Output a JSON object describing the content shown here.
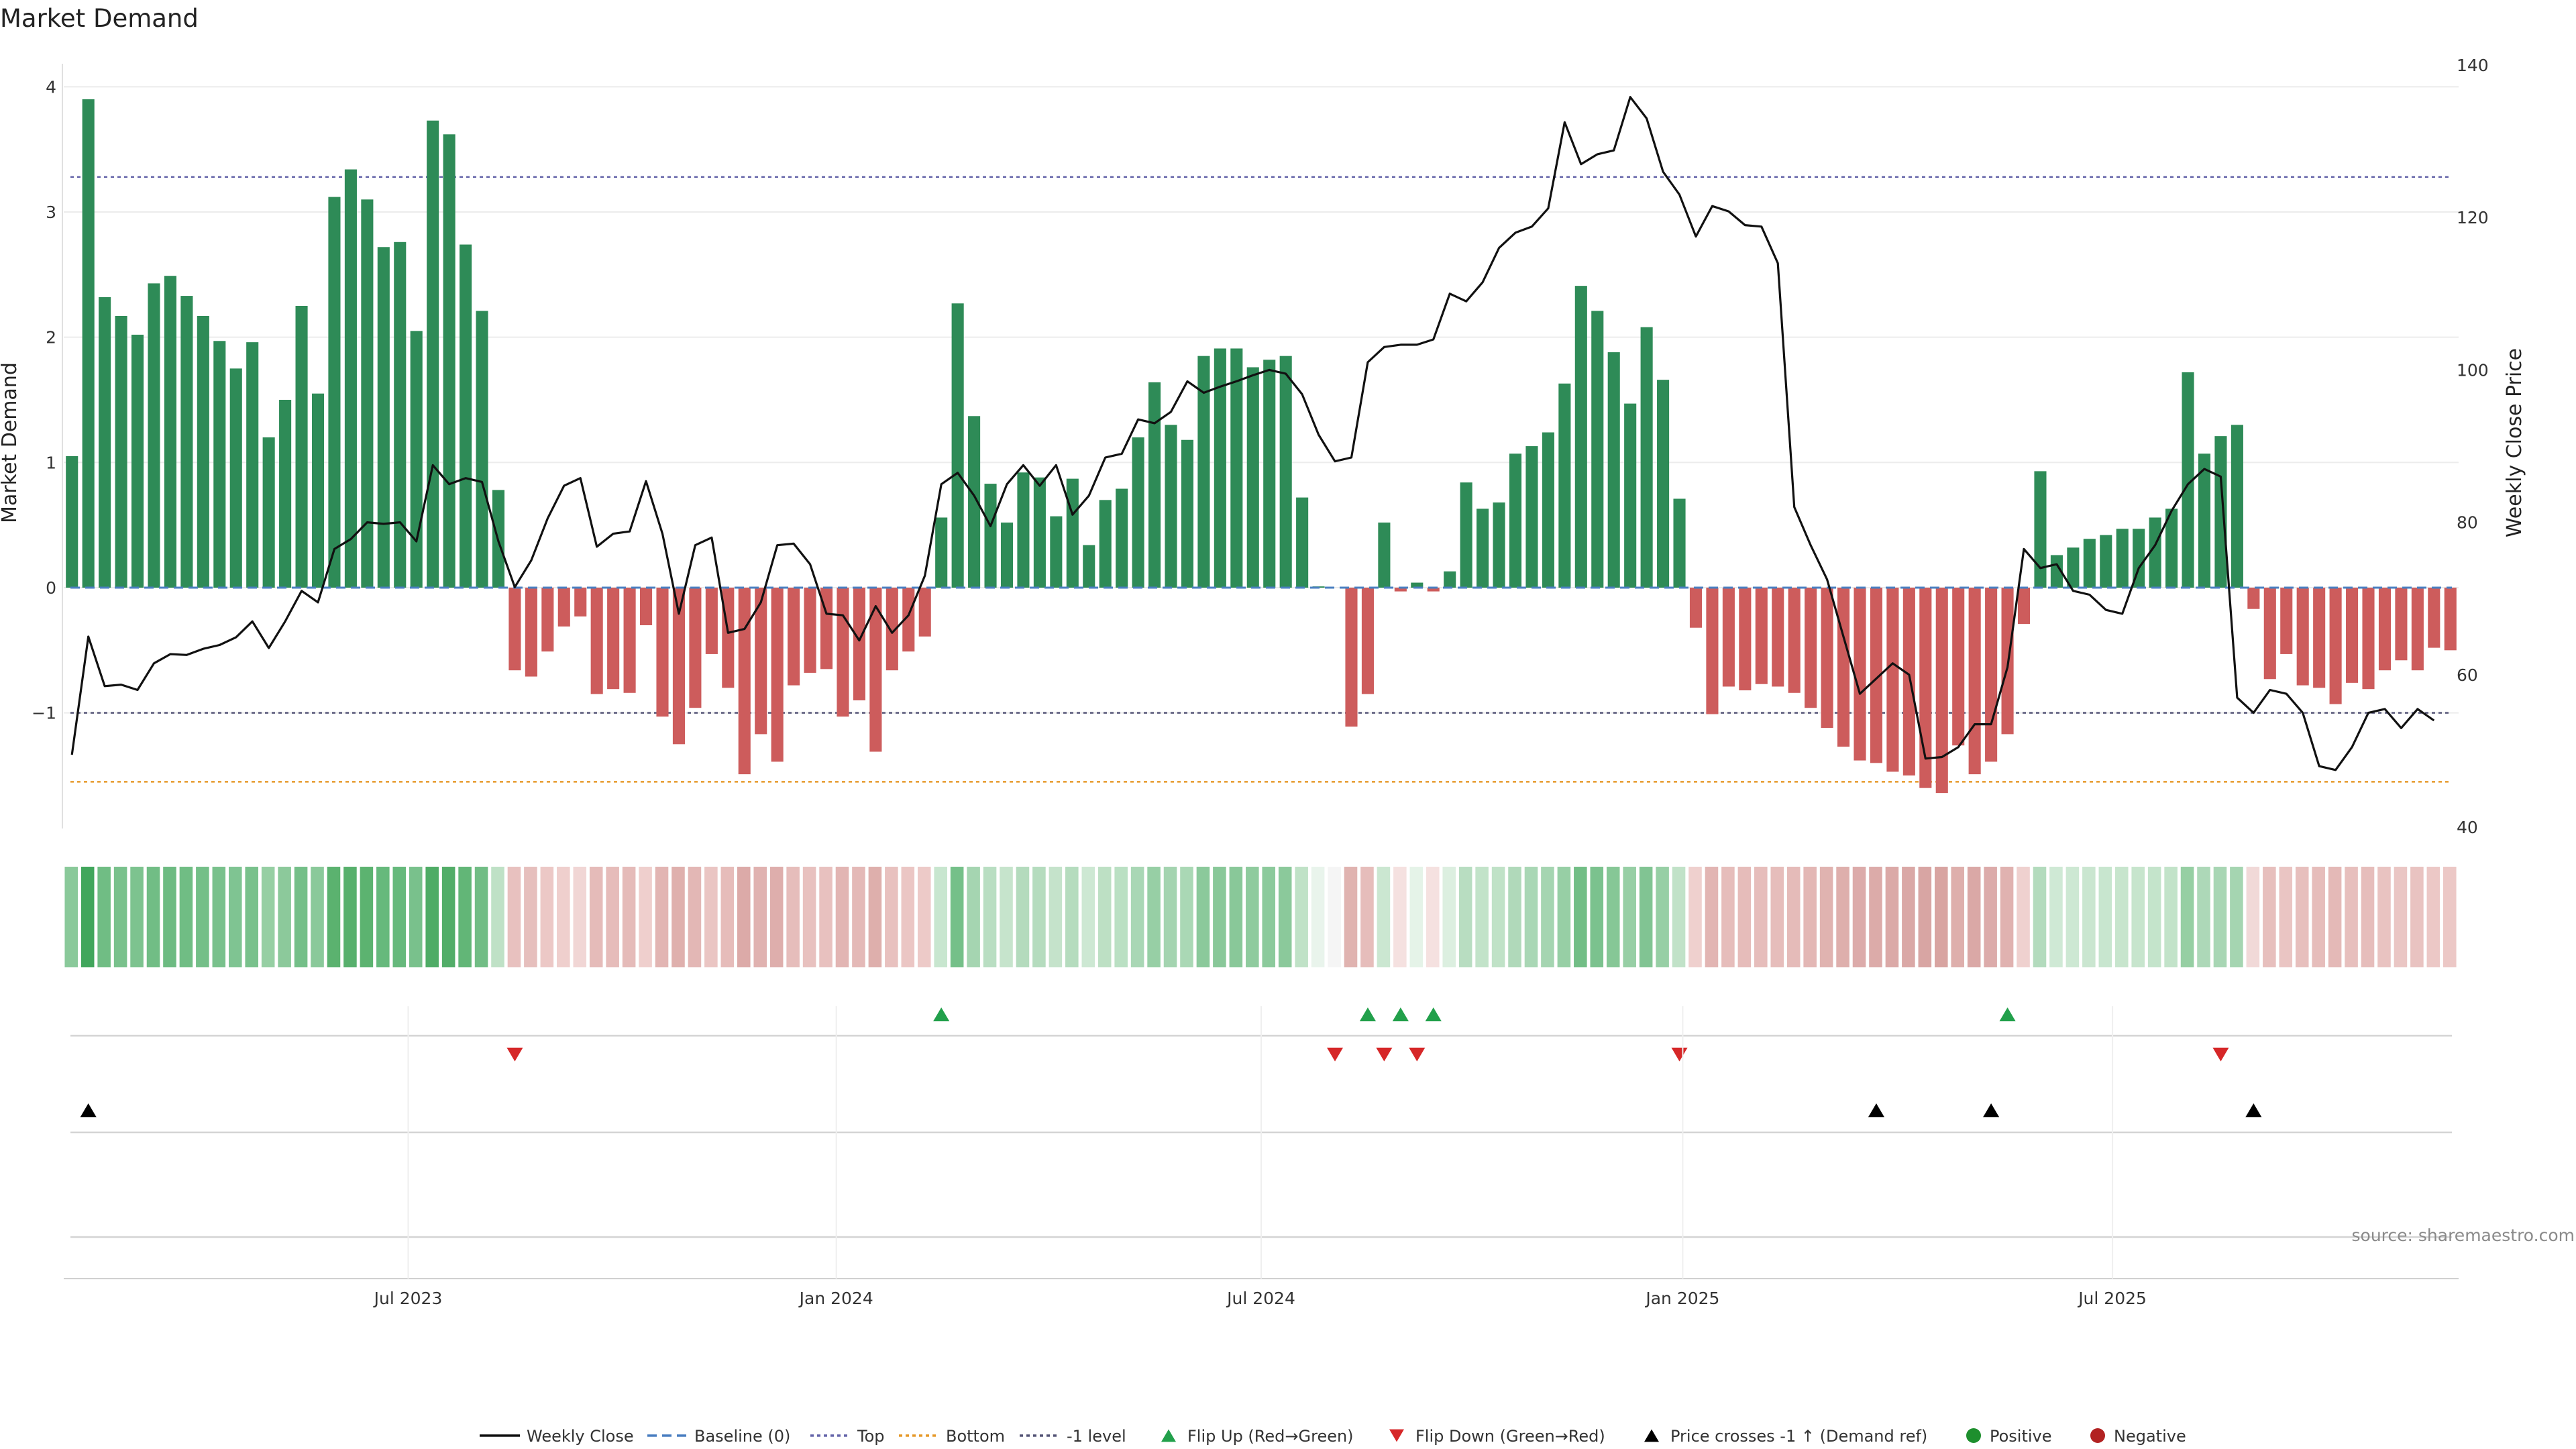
{
  "chart_data": {
    "type": "bar",
    "title": "Market Demand",
    "ylabel": "Market Demand",
    "y2label": "Weekly Close Price",
    "ylim": [
      -1.95,
      4.05
    ],
    "y2lim": [
      40,
      140
    ],
    "yticks": [
      4,
      3,
      2,
      1,
      0,
      -1
    ],
    "ytick_labels": [
      "4",
      "3",
      "2",
      "1",
      "0",
      "−1"
    ],
    "y2ticks": [
      140,
      120,
      100,
      80,
      60,
      40
    ],
    "x_ticks": [
      "Jul 2023",
      "Jan 2024",
      "Jul 2024",
      "Jan 2025",
      "Jul 2025"
    ],
    "x_tick_week_index": [
      21.0,
      47.1,
      73.0,
      98.7,
      124.9
    ],
    "levels": {
      "top": 3.28,
      "minus1": -1.0,
      "bottom": -1.55,
      "baseline": 0
    },
    "source": "source: sharemaestro.com",
    "colors": {
      "positive_bar": "#2e8b57",
      "negative_bar": "#cd5c5c",
      "price_line": "#111111",
      "baseline": "#4a7fc1",
      "top": "#6666aa",
      "bottom": "#e69a2b",
      "minus1": "#555577",
      "flip_up": "#22a04b",
      "flip_down": "#d62728",
      "cross": "#000000",
      "positive_dot": "#1e8f2e",
      "negative_dot": "#b22222"
    },
    "demand": [
      1.05,
      3.9,
      2.32,
      2.17,
      2.02,
      2.43,
      2.49,
      2.33,
      2.17,
      1.97,
      1.75,
      1.96,
      1.2,
      1.5,
      2.25,
      1.55,
      3.12,
      3.34,
      3.1,
      2.72,
      2.76,
      2.05,
      3.73,
      3.62,
      2.74,
      2.21,
      0.78,
      -0.66,
      -0.71,
      -0.51,
      -0.31,
      -0.23,
      -0.85,
      -0.81,
      -0.84,
      -0.3,
      -1.03,
      -1.25,
      -0.96,
      -0.53,
      -0.8,
      -1.49,
      -1.17,
      -1.39,
      -0.78,
      -0.68,
      -0.65,
      -1.03,
      -0.9,
      -1.31,
      -0.66,
      -0.51,
      -0.39,
      0.56,
      2.27,
      1.37,
      0.83,
      0.52,
      0.92,
      0.88,
      0.57,
      0.87,
      0.34,
      0.7,
      0.79,
      1.2,
      1.64,
      1.3,
      1.18,
      1.85,
      1.91,
      1.91,
      1.76,
      1.82,
      1.85,
      0.72,
      0.01,
      0.0,
      -1.11,
      -0.85,
      0.52,
      -0.03,
      0.04,
      -0.03,
      0.13,
      0.84,
      0.63,
      0.68,
      1.07,
      1.13,
      1.24,
      1.63,
      2.41,
      2.21,
      1.88,
      1.47,
      2.08,
      1.66,
      0.71,
      -0.32,
      -1.01,
      -0.79,
      -0.82,
      -0.77,
      -0.79,
      -0.84,
      -0.96,
      -1.12,
      -1.27,
      -1.38,
      -1.4,
      -1.47,
      -1.5,
      -1.6,
      -1.64,
      -1.26,
      -1.49,
      -1.39,
      -1.17,
      -0.29,
      0.93,
      0.26,
      0.32,
      0.39,
      0.42,
      0.47,
      0.47,
      0.56,
      0.63,
      1.72,
      1.07,
      1.21,
      1.3,
      -0.17,
      -0.73,
      -0.53,
      -0.78,
      -0.8,
      -0.93,
      -0.76,
      -0.81,
      -0.66,
      -0.58,
      -0.66,
      -0.48,
      -0.5
    ],
    "price": [
      49.5,
      65.0,
      58.5,
      58.7,
      58.0,
      61.5,
      62.7,
      62.6,
      63.4,
      63.9,
      64.9,
      67.0,
      63.5,
      67.0,
      71.0,
      69.5,
      76.5,
      77.8,
      80.0,
      79.8,
      80.0,
      77.5,
      87.5,
      85.0,
      85.8,
      85.3,
      77.5,
      71.5,
      75.0,
      80.5,
      84.8,
      85.8,
      76.8,
      78.5,
      78.8,
      85.4,
      78.5,
      68.0,
      77.0,
      78.0,
      65.5,
      66.0,
      69.5,
      77.0,
      77.2,
      74.5,
      68.0,
      67.8,
      64.5,
      69.0,
      65.5,
      67.8,
      73.0,
      85.0,
      86.5,
      83.5,
      79.5,
      85.0,
      87.5,
      84.8,
      87.5,
      81.0,
      83.5,
      88.5,
      89.0,
      93.5,
      93.0,
      94.5,
      98.5,
      97.0,
      97.8,
      98.5,
      99.3,
      100.0,
      99.5,
      96.8,
      91.5,
      88.0,
      88.5,
      101.0,
      103.0,
      103.3,
      103.3,
      104.0,
      110.0,
      109.0,
      111.5,
      116.0,
      118.0,
      118.8,
      121.2,
      132.5,
      127.0,
      128.3,
      128.8,
      135.8,
      133.0,
      126.0,
      123.0,
      117.5,
      121.5,
      120.8,
      119.0,
      118.8,
      114.0,
      82.0,
      77.0,
      72.5,
      65.0,
      57.5,
      59.5,
      61.5,
      60.0,
      49.0,
      49.2,
      50.5,
      53.5,
      53.5,
      61.0,
      76.5,
      74.0,
      74.5,
      71.0,
      70.5,
      68.5,
      68.0,
      74.0,
      77.0,
      81.5,
      85.0,
      87.0,
      86.0,
      57.0,
      55.0,
      58.0,
      57.5,
      55.0,
      48.0,
      47.5,
      50.5,
      55.0,
      55.5,
      53.0,
      55.5,
      54.0
    ],
    "strip_colors": [
      "#8ac99a",
      "#41a65c",
      "#70bd84",
      "#79c18c",
      "#7dc38f",
      "#71bd85",
      "#6dbb82",
      "#70bd84",
      "#74bf88",
      "#79c18c",
      "#7fc492",
      "#79c18c",
      "#96cfa3",
      "#8cc99b",
      "#74bf88",
      "#8ac99a",
      "#5bb26f",
      "#57b06c",
      "#5cb370",
      "#66b97c",
      "#66b97c",
      "#79c18c",
      "#4fac66",
      "#52ad68",
      "#62b677",
      "#71bd85",
      "#bfe1c6",
      "#e8c1bf",
      "#e6bfbd",
      "#ecc8c6",
      "#efcfcd",
      "#f1d6d5",
      "#e5bbb9",
      "#e6bcba",
      "#e5bbb9",
      "#efcfcd",
      "#e2b5b3",
      "#dfb0ad",
      "#e3b7b5",
      "#eac5c3",
      "#e6bcba",
      "#dcaaa8",
      "#e0b2b0",
      "#deaeac",
      "#e6bdbb",
      "#e8c1bf",
      "#e8c1bf",
      "#e2b5b3",
      "#e4b9b7",
      "#deafac",
      "#e8c1bf",
      "#ebc6c4",
      "#edcac8",
      "#c8e6cf",
      "#75c089",
      "#a5d5b1",
      "#b9dec2",
      "#c6e4cc",
      "#b4dbbd",
      "#b5dcbe",
      "#c5e3cb",
      "#b5dcbe",
      "#cde8d3",
      "#bde0c4",
      "#bae0c3",
      "#a9d7b5",
      "#97cfa5",
      "#a4d4b0",
      "#aad8b5",
      "#8bc99b",
      "#89c899",
      "#89c899",
      "#8fcb9e",
      "#8cca9c",
      "#8bc99b",
      "#c0e2c7",
      "#e9f4ec",
      "#f5f5f5",
      "#e0b3b0",
      "#e6bdbb",
      "#cbe7d1",
      "#f5e1e0",
      "#e5f3e8",
      "#f5e1e0",
      "#dcefe0",
      "#b8ddc1",
      "#c2e3c9",
      "#c0e2c7",
      "#b0d9ba",
      "#a9d7b5",
      "#a5d5b1",
      "#97cfa5",
      "#72be86",
      "#7bc28e",
      "#86c796",
      "#97cfa5",
      "#81c493",
      "#97cfa5",
      "#c1e2c8",
      "#efd0ce",
      "#e2b5b3",
      "#e6bdbb",
      "#e6bcba",
      "#e6bdbb",
      "#e6bdbb",
      "#e5bbb9",
      "#e3b7b5",
      "#e0b3b0",
      "#deafac",
      "#dcabaa",
      "#dcaba9",
      "#dba9a7",
      "#daa8a6",
      "#d8a5a3",
      "#d8a4a1",
      "#deafac",
      "#daa8a6",
      "#dcabaa",
      "#e0b2b0",
      "#efd1cf",
      "#b3dbbd",
      "#cfe9d5",
      "#cde8d3",
      "#cae6d0",
      "#c8e6cf",
      "#c7e5cd",
      "#c7e5cd",
      "#c4e4cb",
      "#c2e3c9",
      "#96cfa3",
      "#add8b8",
      "#a8d6b4",
      "#a5d5b1",
      "#f1d9d8",
      "#e7bfbd",
      "#eac5c3",
      "#e7bfbd",
      "#e6bdbb",
      "#e4b9b7",
      "#e7bfbd",
      "#e6bdbb",
      "#e9c3c1",
      "#eac6c4",
      "#e9c3c1",
      "#ecc8c6",
      "#ecc8c6"
    ],
    "flip_up_weeks": [
      53,
      79,
      81,
      83,
      118
    ],
    "flip_down_weeks": [
      27,
      77,
      80,
      82,
      98,
      131
    ],
    "cross_weeks": [
      1,
      110,
      117,
      133
    ],
    "legend": [
      "Weekly Close",
      "Baseline (0)",
      "Top",
      "Bottom",
      "-1 level",
      "Flip Up (Red→Green)",
      "Flip Down (Green→Red)",
      "Price crosses -1 ↑ (Demand ref)",
      "Positive",
      "Negative"
    ]
  }
}
